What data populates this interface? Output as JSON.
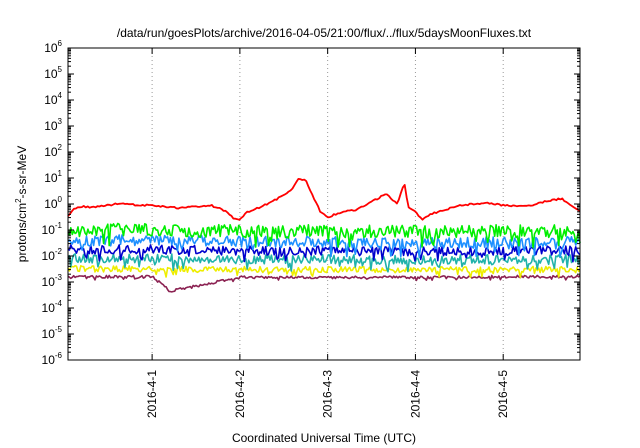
{
  "chart_data": {
    "type": "line",
    "title": "/data/run/goesPlots/archive/2016-04-05/21:00/flux/../flux/5daysMoonFluxes.txt",
    "xlabel": "Coordinated Universal Time (UTC)",
    "ylabel_main": "protons/cm",
    "ylabel_sup": "2",
    "ylabel_rest": "-s-sr-MeV",
    "yscale": "log",
    "ylim": [
      1e-06,
      1000000.0
    ],
    "xlim": [
      "2016-03-31 01:00",
      "2016-04-05 21:00"
    ],
    "grid": true,
    "legend": "none",
    "x_ticks": [
      "2016-4-1",
      "2016-4-2",
      "2016-4-3",
      "2016-4-4",
      "2016-4-5"
    ],
    "y_ticks": [
      {
        "base": "10",
        "exp": "6"
      },
      {
        "base": "10",
        "exp": "5"
      },
      {
        "base": "10",
        "exp": "4"
      },
      {
        "base": "10",
        "exp": "3"
      },
      {
        "base": "10",
        "exp": "2"
      },
      {
        "base": "10",
        "exp": "1"
      },
      {
        "base": "10",
        "exp": "0"
      },
      {
        "base": "10",
        "exp": "-1"
      },
      {
        "base": "10",
        "exp": "-2"
      },
      {
        "base": "10",
        "exp": "-3"
      },
      {
        "base": "10",
        "exp": "-4"
      },
      {
        "base": "10",
        "exp": "-5"
      },
      {
        "base": "10",
        "exp": "-6"
      }
    ],
    "series": [
      {
        "color": "#ff0000",
        "x": [
          "2016-03-31 01:00",
          "2016-03-31 03:00",
          "2016-03-31 05:00",
          "2016-03-31 08:00",
          "2016-03-31 12:00",
          "2016-03-31 16:00",
          "2016-03-31 20:00",
          "2016-04-01 00:00",
          "2016-04-01 04:00",
          "2016-04-01 08:00",
          "2016-04-01 12:00",
          "2016-04-01 16:00",
          "2016-04-01 20:00",
          "2016-04-01 22:00",
          "2016-04-02 00:00",
          "2016-04-02 02:00",
          "2016-04-02 06:00",
          "2016-04-02 10:00",
          "2016-04-02 14:00",
          "2016-04-02 16:00",
          "2016-04-02 18:00",
          "2016-04-02 20:00",
          "2016-04-02 22:00",
          "2016-04-03 00:00",
          "2016-04-03 02:00",
          "2016-04-03 04:00",
          "2016-04-03 08:00",
          "2016-04-03 12:00",
          "2016-04-03 16:00",
          "2016-04-03 19:00",
          "2016-04-03 21:00",
          "2016-04-03 22:00",
          "2016-04-04 00:00",
          "2016-04-04 02:00",
          "2016-04-04 04:00",
          "2016-04-04 08:00",
          "2016-04-04 12:00",
          "2016-04-04 16:00",
          "2016-04-04 20:00",
          "2016-04-05 00:00",
          "2016-04-05 04:00",
          "2016-04-05 08:00",
          "2016-04-05 12:00",
          "2016-04-05 16:00",
          "2016-04-05 21:00"
        ],
        "y": [
          0.35,
          0.7,
          0.8,
          0.75,
          0.9,
          1.1,
          0.9,
          0.9,
          0.75,
          0.7,
          0.8,
          0.9,
          0.55,
          0.3,
          0.25,
          0.5,
          0.8,
          1.5,
          3.5,
          9,
          8,
          2,
          0.5,
          0.3,
          0.4,
          0.5,
          0.6,
          1.2,
          2.5,
          1.0,
          6.5,
          0.8,
          0.5,
          0.25,
          0.4,
          0.6,
          0.9,
          1.0,
          1.1,
          0.9,
          0.8,
          0.9,
          1.3,
          1.6,
          0.5
        ]
      },
      {
        "color": "#00ee00",
        "x": [
          "2016-03-31 01:00",
          "2016-04-01 00:00",
          "2016-04-02 00:00",
          "2016-04-03 00:00",
          "2016-04-04 00:00",
          "2016-04-05 00:00",
          "2016-04-05 21:00"
        ],
        "y": [
          0.1,
          0.1,
          0.09,
          0.09,
          0.085,
          0.09,
          0.09
        ]
      },
      {
        "color": "#1e90ff",
        "x": [
          "2016-03-31 01:00",
          "2016-04-01 00:00",
          "2016-04-02 00:00",
          "2016-04-03 00:00",
          "2016-04-04 00:00",
          "2016-04-05 00:00",
          "2016-04-05 21:00"
        ],
        "y": [
          0.04,
          0.04,
          0.035,
          0.035,
          0.03,
          0.035,
          0.035
        ]
      },
      {
        "color": "#0000cd",
        "x": [
          "2016-03-31 01:00",
          "2016-04-01 00:00",
          "2016-04-02 00:00",
          "2016-04-03 00:00",
          "2016-04-04 00:00",
          "2016-04-05 00:00",
          "2016-04-05 21:00"
        ],
        "y": [
          0.018,
          0.018,
          0.016,
          0.016,
          0.015,
          0.016,
          0.016
        ]
      },
      {
        "color": "#20b2aa",
        "x": [
          "2016-03-31 01:00",
          "2016-04-01 00:00",
          "2016-04-02 00:00",
          "2016-04-03 00:00",
          "2016-04-04 00:00",
          "2016-04-05 00:00",
          "2016-04-05 21:00"
        ],
        "y": [
          0.008,
          0.008,
          0.0075,
          0.0075,
          0.007,
          0.0075,
          0.0075
        ]
      },
      {
        "color": "#eeee00",
        "x": [
          "2016-03-31 01:00",
          "2016-04-01 00:00",
          "2016-04-02 00:00",
          "2016-04-03 00:00",
          "2016-04-04 00:00",
          "2016-04-05 00:00",
          "2016-04-05 21:00"
        ],
        "y": [
          0.0032,
          0.0032,
          0.003,
          0.003,
          0.003,
          0.003,
          0.003
        ]
      },
      {
        "color": "#8b2252",
        "x": [
          "2016-03-31 01:00",
          "2016-04-01 00:00",
          "2016-04-01 05:00",
          "2016-04-02 00:00",
          "2016-04-03 00:00",
          "2016-04-04 00:00",
          "2016-04-05 00:00",
          "2016-04-05 21:00"
        ],
        "y": [
          0.0016,
          0.0016,
          0.00045,
          0.0015,
          0.0015,
          0.0015,
          0.0016,
          0.0016
        ]
      }
    ]
  }
}
